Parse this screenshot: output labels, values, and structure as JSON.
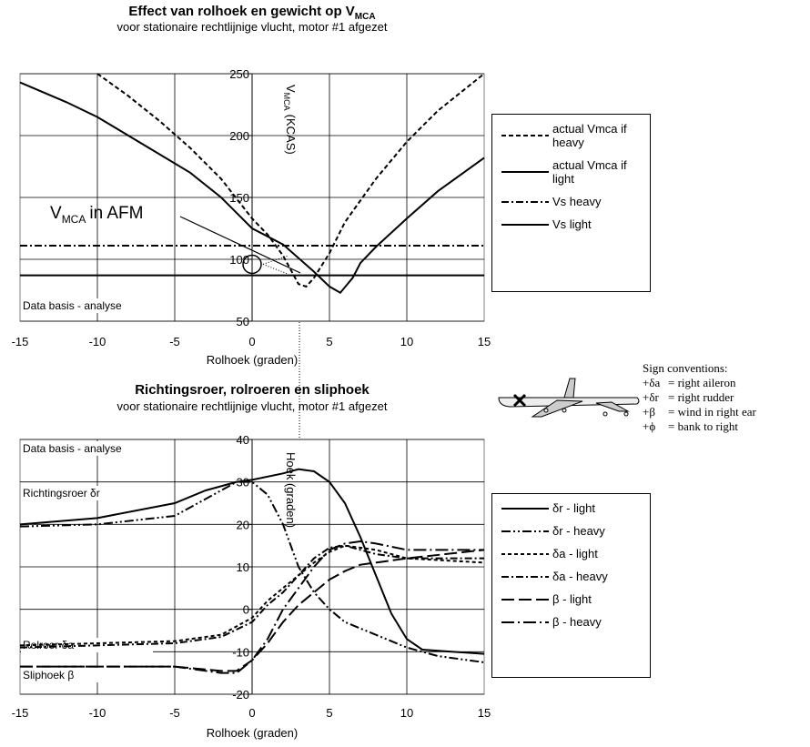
{
  "chart_data": [
    {
      "type": "line",
      "title": "Effect van rolhoek en gewicht op V",
      "title_sub": "MCA",
      "subtitle": "voor stationaire rechtlijnige vlucht, motor #1 afgezet",
      "xlabel": "Rolhoek (graden)",
      "ylabel": "V",
      "ylabel_sub": "MCA",
      "ylabel_rest": "(KCAS)",
      "xlim": [
        -15,
        15
      ],
      "xticks": [
        -15,
        -10,
        -5,
        0,
        5,
        10,
        15
      ],
      "ylim": [
        50,
        250
      ],
      "yticks": [
        50,
        100,
        150,
        200,
        250
      ],
      "grid": true,
      "annotations": [
        "Data basis - analyse"
      ],
      "afm_label": {
        "main": "V",
        "sub": "MCA",
        "rest": "in AFM"
      },
      "series": [
        {
          "name": "actual Vmca if heavy",
          "color": "#000000",
          "dash": "5,3",
          "x": [
            -10,
            -8,
            -6,
            -4,
            -2,
            0,
            1,
            2,
            3,
            3.5,
            4,
            5,
            6,
            8,
            10,
            12,
            15
          ],
          "values": [
            250,
            232,
            212,
            190,
            165,
            133,
            120,
            103,
            80,
            78,
            85,
            105,
            130,
            165,
            195,
            220,
            250
          ]
        },
        {
          "name": "actual Vmca if light",
          "color": "#000000",
          "dash": "",
          "x": [
            -15,
            -12,
            -10,
            -8,
            -6,
            -4,
            -2,
            0,
            2,
            4,
            5,
            5.7,
            6.5,
            7,
            8,
            10,
            12,
            15
          ],
          "values": [
            243,
            227,
            215,
            200,
            185,
            170,
            150,
            125,
            112,
            90,
            78,
            73,
            85,
            97,
            110,
            133,
            155,
            182
          ]
        },
        {
          "name": "Vs heavy",
          "color": "#000000",
          "dash": "8,3,2,3",
          "x": [
            -15,
            15
          ],
          "values": [
            111,
            111
          ]
        },
        {
          "name": "Vs light",
          "color": "#000000",
          "dash": "",
          "x": [
            -15,
            15
          ],
          "values": [
            87,
            87
          ]
        }
      ]
    },
    {
      "type": "line",
      "title": "Richtingsroer, rolroeren en sliphoek",
      "subtitle": "voor stationaire rechtlijnige vlucht, motor #1 afgezet",
      "xlabel": "Rolhoek (graden)",
      "ylabel": "Hoek (graden)",
      "xlim": [
        -15,
        15
      ],
      "xticks": [
        -15,
        -10,
        -5,
        0,
        5,
        10,
        15
      ],
      "ylim": [
        -20,
        40
      ],
      "yticks": [
        -20,
        -10,
        0,
        10,
        20,
        30,
        40
      ],
      "grid": true,
      "annotations": [
        "Data basis - analyse",
        "Richtingsroer δr",
        "Rolroer  δa",
        "Sliphoek β"
      ],
      "series": [
        {
          "name": "δr - light",
          "color": "#000000",
          "dash": "",
          "x": [
            -15,
            -10,
            -5,
            -3,
            -1,
            0,
            2,
            3,
            4,
            5,
            6,
            7,
            8,
            9,
            10,
            11,
            13,
            15
          ],
          "values": [
            20,
            21.5,
            25,
            28,
            30,
            30.5,
            32,
            33,
            32.5,
            30,
            25,
            17,
            8,
            -1,
            -7,
            -9.5,
            -10,
            -10.5
          ]
        },
        {
          "name": "δr - heavy",
          "color": "#000000",
          "dash": "10,3,2,3,2,3",
          "x": [
            -15,
            -10,
            -5,
            -3,
            -1,
            0,
            1,
            2,
            3,
            4,
            5,
            6,
            8,
            10,
            12,
            15
          ],
          "values": [
            19.5,
            20,
            22,
            26,
            30,
            30,
            27,
            20,
            10,
            4,
            0,
            -3,
            -6,
            -9,
            -11,
            -12.5
          ]
        },
        {
          "name": "δa - light",
          "color": "#000000",
          "dash": "4,3",
          "x": [
            -15,
            -10,
            -5,
            -2,
            0,
            1,
            2,
            3,
            4,
            5,
            6,
            8,
            10,
            15
          ],
          "values": [
            -8.5,
            -8,
            -7.5,
            -6,
            -2,
            2,
            5,
            8,
            11,
            13.5,
            15,
            14,
            12,
            11
          ]
        },
        {
          "name": "δa - heavy",
          "color": "#000000",
          "dash": "8,3,2,3",
          "x": [
            -15,
            -10,
            -5,
            -2,
            0,
            1,
            2,
            3,
            4,
            5,
            6,
            8,
            10,
            15
          ],
          "values": [
            -9,
            -8.5,
            -8,
            -6.5,
            -3,
            1,
            4,
            8,
            12,
            14.5,
            15,
            13,
            12,
            12
          ]
        },
        {
          "name": "β - light",
          "color": "#000000",
          "dash": "14,5",
          "x": [
            -15,
            -5,
            -2,
            -1,
            0,
            1,
            2,
            3,
            4,
            5,
            6,
            7,
            8,
            10,
            15
          ],
          "values": [
            -13.5,
            -13.5,
            -14.5,
            -14.5,
            -12,
            -8,
            -3,
            1,
            4,
            7,
            9,
            10.5,
            11,
            12,
            14
          ]
        },
        {
          "name": "β - heavy",
          "color": "#000000",
          "dash": "14,4,2,4",
          "x": [
            -15,
            -5,
            -2,
            -1,
            0,
            1,
            2,
            3,
            4,
            5,
            6,
            7,
            8,
            10,
            15
          ],
          "values": [
            -13.5,
            -13.5,
            -15,
            -15,
            -12,
            -7,
            0,
            5,
            10,
            14,
            15.5,
            16,
            15.5,
            14,
            14
          ]
        }
      ]
    }
  ],
  "sign_conventions": {
    "title": "Sign conventions:",
    "items": [
      {
        "symbol": "+δa",
        "text": "= right aileron"
      },
      {
        "symbol": "+δr",
        "text": "= right rudder"
      },
      {
        "symbol": "+β",
        "text": "= wind in right ear"
      },
      {
        "symbol": "+ϕ",
        "text": "= bank to right"
      }
    ]
  }
}
